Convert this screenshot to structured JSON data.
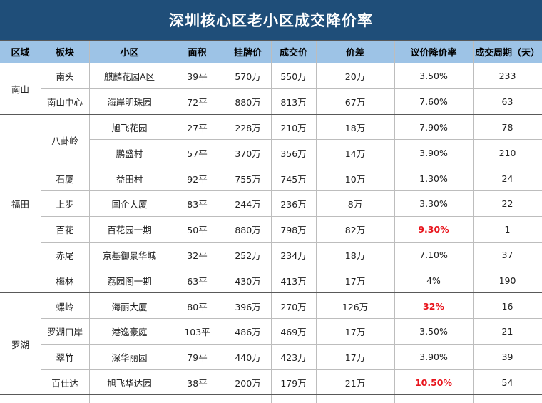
{
  "title": "深圳核心区老小区成交降价率",
  "headers": [
    "区域",
    "板块",
    "小区",
    "面积",
    "挂牌价",
    "成交价",
    "价差",
    "议价降价率",
    "成交周期（天）"
  ],
  "groups": [
    {
      "district": "南山",
      "rows": [
        {
          "block": "南头",
          "community": "麒麟花园A区",
          "area": "39平",
          "list": "570万",
          "deal": "550万",
          "diff": "20万",
          "rate": "3.50%",
          "rate_red": false,
          "days": "233"
        },
        {
          "block": "南山中心",
          "community": "海岸明珠园",
          "area": "72平",
          "list": "880万",
          "deal": "813万",
          "diff": "67万",
          "rate": "7.60%",
          "rate_red": false,
          "days": "63"
        }
      ]
    },
    {
      "district": "福田",
      "rows": [
        {
          "block": "八卦岭",
          "community": "旭飞花园",
          "area": "27平",
          "list": "228万",
          "deal": "210万",
          "diff": "18万",
          "rate": "7.90%",
          "rate_red": false,
          "days": "78"
        },
        {
          "block": "",
          "community": "鹏盛村",
          "area": "57平",
          "list": "370万",
          "deal": "356万",
          "diff": "14万",
          "rate": "3.90%",
          "rate_red": false,
          "days": "210"
        },
        {
          "block": "石厦",
          "community": "益田村",
          "area": "92平",
          "list": "755万",
          "deal": "745万",
          "diff": "10万",
          "rate": "1.30%",
          "rate_red": false,
          "days": "24"
        },
        {
          "block": "上步",
          "community": "国企大厦",
          "area": "83平",
          "list": "244万",
          "deal": "236万",
          "diff": "8万",
          "rate": "3.30%",
          "rate_red": false,
          "days": "22"
        },
        {
          "block": "百花",
          "community": "百花园一期",
          "area": "50平",
          "list": "880万",
          "deal": "798万",
          "diff": "82万",
          "rate": "9.30%",
          "rate_red": true,
          "days": "1"
        },
        {
          "block": "赤尾",
          "community": "京基御景华城",
          "area": "32平",
          "list": "252万",
          "deal": "234万",
          "diff": "18万",
          "rate": "7.10%",
          "rate_red": false,
          "days": "37"
        },
        {
          "block": "梅林",
          "community": "荔园阁一期",
          "area": "63平",
          "list": "430万",
          "deal": "413万",
          "diff": "17万",
          "rate": "4%",
          "rate_red": false,
          "days": "190"
        }
      ]
    },
    {
      "district": "罗湖",
      "rows": [
        {
          "block": "螺岭",
          "community": "海丽大厦",
          "area": "80平",
          "list": "396万",
          "deal": "270万",
          "diff": "126万",
          "rate": "32%",
          "rate_red": true,
          "days": "16"
        },
        {
          "block": "罗湖口岸",
          "community": "港逸豪庭",
          "area": "103平",
          "list": "486万",
          "deal": "469万",
          "diff": "17万",
          "rate": "3.50%",
          "rate_red": false,
          "days": "21"
        },
        {
          "block": "翠竹",
          "community": "深华丽园",
          "area": "79平",
          "list": "440万",
          "deal": "423万",
          "diff": "17万",
          "rate": "3.90%",
          "rate_red": false,
          "days": "39"
        },
        {
          "block": "百仕达",
          "community": "旭飞华达园",
          "area": "38平",
          "list": "200万",
          "deal": "179万",
          "diff": "21万",
          "rate": "10.50%",
          "rate_red": true,
          "days": "54"
        }
      ]
    }
  ]
}
